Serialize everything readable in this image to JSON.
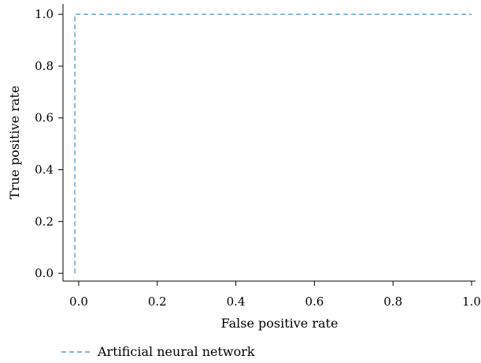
{
  "chart_data": {
    "type": "line",
    "title": "",
    "xlabel": "False positive rate",
    "ylabel": "True positive rate",
    "xlim": [
      -0.04,
      1.01
    ],
    "ylim": [
      -0.03,
      1.04
    ],
    "x_ticks": [
      {
        "value": 0.0,
        "label": "0.0"
      },
      {
        "value": 0.2,
        "label": "0.2"
      },
      {
        "value": 0.4,
        "label": "0.4"
      },
      {
        "value": 0.6,
        "label": "0.6"
      },
      {
        "value": 0.8,
        "label": "0.8"
      },
      {
        "value": 1.0,
        "label": "1.0"
      }
    ],
    "y_ticks": [
      {
        "value": 0.0,
        "label": "0.0"
      },
      {
        "value": 0.2,
        "label": "0.2"
      },
      {
        "value": 0.4,
        "label": "0.4"
      },
      {
        "value": 0.6,
        "label": "0.6"
      },
      {
        "value": 0.8,
        "label": "0.8"
      },
      {
        "value": 1.0,
        "label": "1.0"
      }
    ],
    "grid": false,
    "legend_position": "bottom-left",
    "series": [
      {
        "name": "Artificial neural network",
        "color": "#5b9bc9",
        "line_style": "dashed",
        "x": [
          -0.01,
          -0.01,
          1.0
        ],
        "y": [
          0.0,
          1.0,
          1.0
        ]
      }
    ]
  }
}
